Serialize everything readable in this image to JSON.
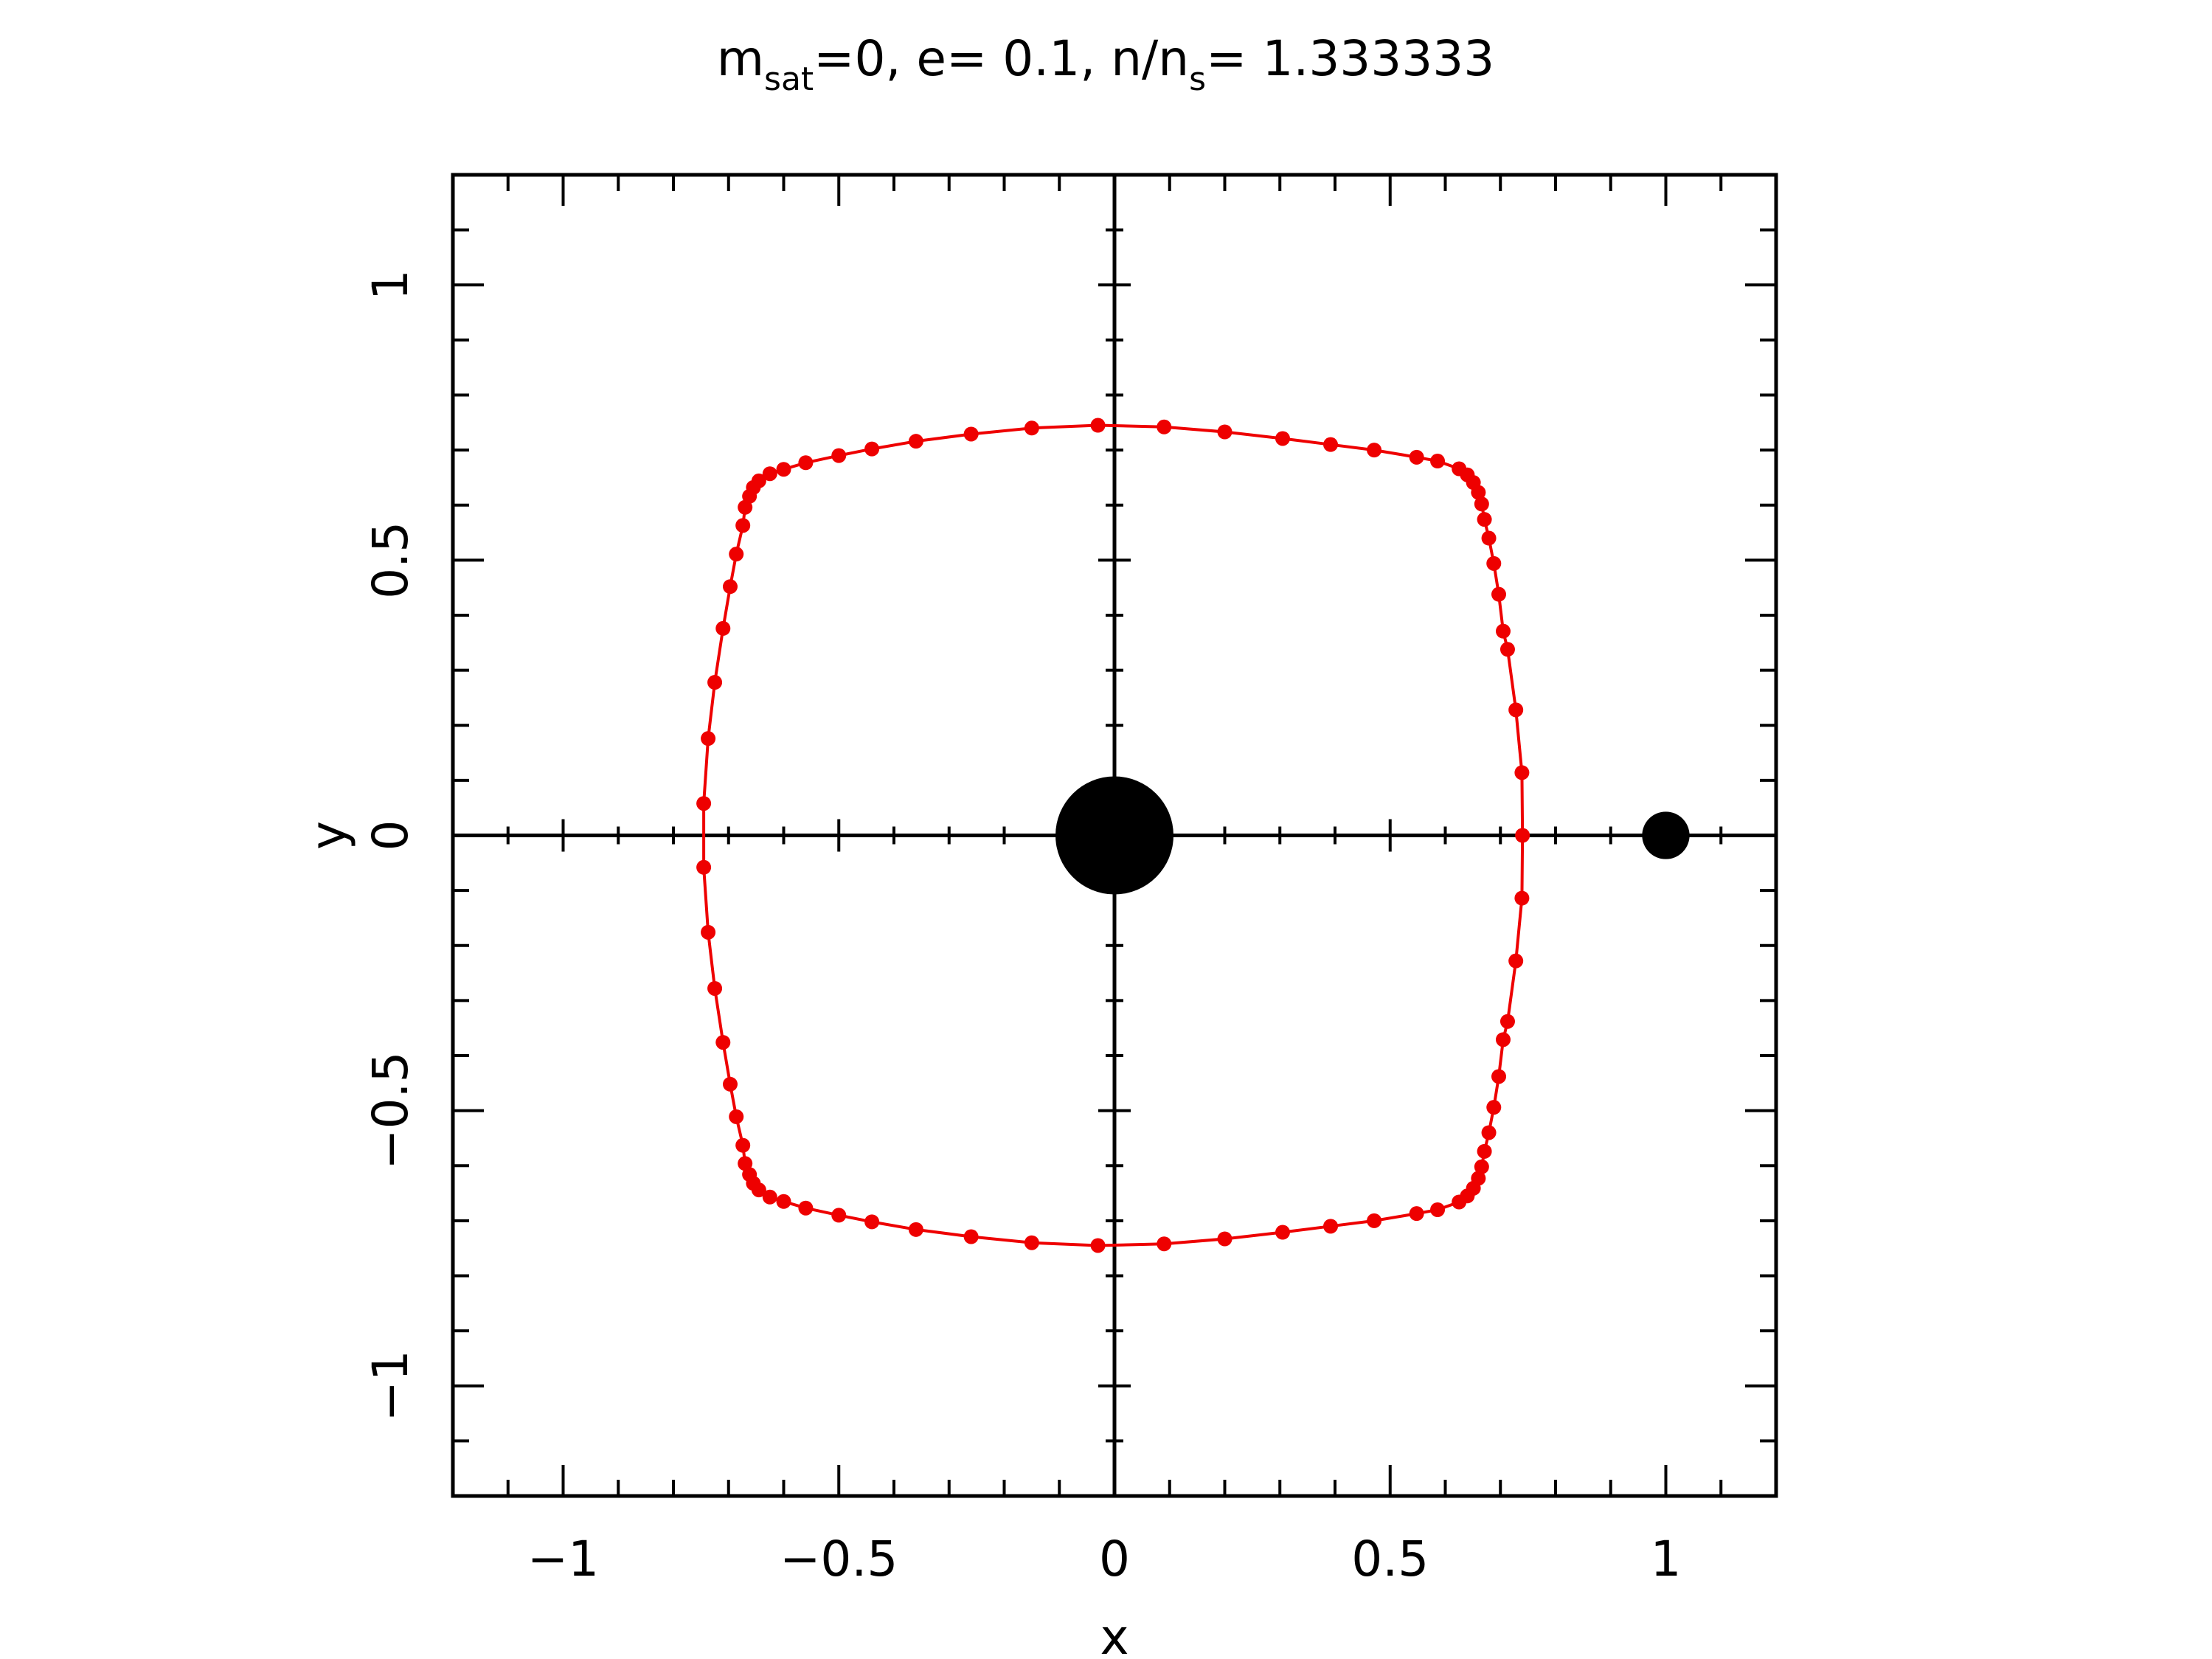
{
  "chart_data": {
    "type": "scatter",
    "title": {
      "m": "m",
      "m_sub": "sat",
      "part1": "=0, e= 0.1, n/n",
      "s_sub": "s",
      "part2": "= 1.333333"
    },
    "xlabel": "x",
    "ylabel": "y",
    "xlim": [
      -1.2,
      1.2
    ],
    "ylim": [
      -1.2,
      1.2
    ],
    "xticks": [
      {
        "value": -1,
        "label": "−1"
      },
      {
        "value": -0.5,
        "label": "−0.5"
      },
      {
        "value": 0,
        "label": "0"
      },
      {
        "value": 0.5,
        "label": "0.5"
      },
      {
        "value": 1,
        "label": "1"
      }
    ],
    "yticks": [
      {
        "value": -1,
        "label": "−1"
      },
      {
        "value": -0.5,
        "label": "−0.5"
      },
      {
        "value": 0,
        "label": "0"
      },
      {
        "value": 0.5,
        "label": "0.5"
      },
      {
        "value": 1,
        "label": "1"
      }
    ],
    "minor_tick_step": 0.1,
    "grid": false,
    "bodies": [
      {
        "x": 0,
        "y": 0,
        "radius": 0.107
      },
      {
        "x": 1,
        "y": 0,
        "radius": 0.043
      }
    ],
    "series": [
      {
        "color": "#ee0000",
        "points": [
          [
            0.74,
            0.0
          ],
          [
            0.739,
            0.114
          ],
          [
            0.728,
            0.228
          ],
          [
            0.713,
            0.338
          ],
          [
            0.705,
            0.371
          ],
          [
            0.697,
            0.438
          ],
          [
            0.688,
            0.494
          ],
          [
            0.679,
            0.54
          ],
          [
            0.671,
            0.574
          ],
          [
            0.666,
            0.602
          ],
          [
            0.66,
            0.623
          ],
          [
            0.651,
            0.641
          ],
          [
            0.64,
            0.655
          ],
          [
            0.625,
            0.666
          ],
          [
            0.586,
            0.68
          ],
          [
            0.548,
            0.687
          ],
          [
            0.471,
            0.7
          ],
          [
            0.392,
            0.71
          ],
          [
            0.305,
            0.721
          ],
          [
            0.2,
            0.733
          ],
          [
            0.09,
            0.742
          ],
          [
            -0.03,
            0.745
          ],
          [
            -0.15,
            0.74
          ],
          [
            -0.26,
            0.729
          ],
          [
            -0.36,
            0.716
          ],
          [
            -0.44,
            0.702
          ],
          [
            -0.5,
            0.69
          ],
          [
            -0.56,
            0.677
          ],
          [
            -0.6,
            0.665
          ],
          [
            -0.625,
            0.657
          ],
          [
            -0.645,
            0.644
          ],
          [
            -0.655,
            0.632
          ],
          [
            -0.662,
            0.616
          ],
          [
            -0.67,
            0.596
          ],
          [
            -0.674,
            0.563
          ],
          [
            -0.686,
            0.511
          ],
          [
            -0.697,
            0.452
          ],
          [
            -0.71,
            0.376
          ],
          [
            -0.725,
            0.278
          ],
          [
            -0.737,
            0.176
          ],
          [
            -0.745,
            0.058
          ],
          [
            -0.745,
            -0.058
          ],
          [
            -0.737,
            -0.176
          ],
          [
            -0.725,
            -0.278
          ],
          [
            -0.71,
            -0.376
          ],
          [
            -0.697,
            -0.452
          ],
          [
            -0.686,
            -0.511
          ],
          [
            -0.674,
            -0.563
          ],
          [
            -0.67,
            -0.596
          ],
          [
            -0.662,
            -0.616
          ],
          [
            -0.655,
            -0.632
          ],
          [
            -0.645,
            -0.644
          ],
          [
            -0.625,
            -0.657
          ],
          [
            -0.6,
            -0.665
          ],
          [
            -0.56,
            -0.677
          ],
          [
            -0.5,
            -0.69
          ],
          [
            -0.44,
            -0.702
          ],
          [
            -0.36,
            -0.716
          ],
          [
            -0.26,
            -0.729
          ],
          [
            -0.15,
            -0.74
          ],
          [
            -0.03,
            -0.745
          ],
          [
            0.09,
            -0.742
          ],
          [
            0.2,
            -0.733
          ],
          [
            0.305,
            -0.721
          ],
          [
            0.392,
            -0.71
          ],
          [
            0.471,
            -0.7
          ],
          [
            0.548,
            -0.687
          ],
          [
            0.586,
            -0.68
          ],
          [
            0.625,
            -0.666
          ],
          [
            0.64,
            -0.655
          ],
          [
            0.651,
            -0.641
          ],
          [
            0.66,
            -0.623
          ],
          [
            0.666,
            -0.602
          ],
          [
            0.671,
            -0.574
          ],
          [
            0.679,
            -0.54
          ],
          [
            0.688,
            -0.494
          ],
          [
            0.697,
            -0.438
          ],
          [
            0.705,
            -0.371
          ],
          [
            0.713,
            -0.338
          ],
          [
            0.728,
            -0.228
          ],
          [
            0.739,
            -0.114
          ]
        ]
      }
    ]
  }
}
